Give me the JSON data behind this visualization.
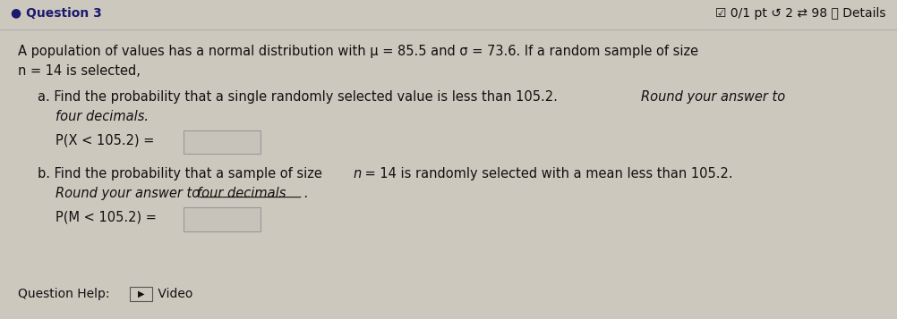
{
  "bg_color": "#cdc8be",
  "box_facecolor": "#c8c3ba",
  "box_edgecolor": "#999999",
  "header_text_left": "● Question 3",
  "header_text_right": "☑ 0/1 pt ↺ 2 ⇄ 98 ⓘ Details",
  "header_line_color": "#aaaaaa",
  "text_color": "#111111",
  "main_line1": "A population of values has a normal distribution with μ = 85.5 and σ = 73.6. If a random sample of size",
  "main_line2": "n = 14 is selected,",
  "part_a_line1_normal": "a. Find the probability that a single randomly selected value is less than 105.2. ",
  "part_a_line1_italic": "Round your answer to",
  "part_a_line2_italic": "four decimals.",
  "part_a_label": "P(X < 105.2) =",
  "part_b_line1": "b. Find the probability that a sample of size ",
  "part_b_line1_italic_n": "n",
  "part_b_line1_end": " = 14 is randomly selected with a mean less than 105.2.",
  "part_b_line2_italic": "Round your answer to ",
  "part_b_line2_underline": "four decimals",
  "part_b_line2_end": ".",
  "part_b_label": "P(M < 105.2) =",
  "footer_normal": "Question Help:  ",
  "footer_icon": "▶",
  "footer_video": " Video",
  "font_size_header": 10,
  "font_size_main": 10.5,
  "font_size_small": 10
}
